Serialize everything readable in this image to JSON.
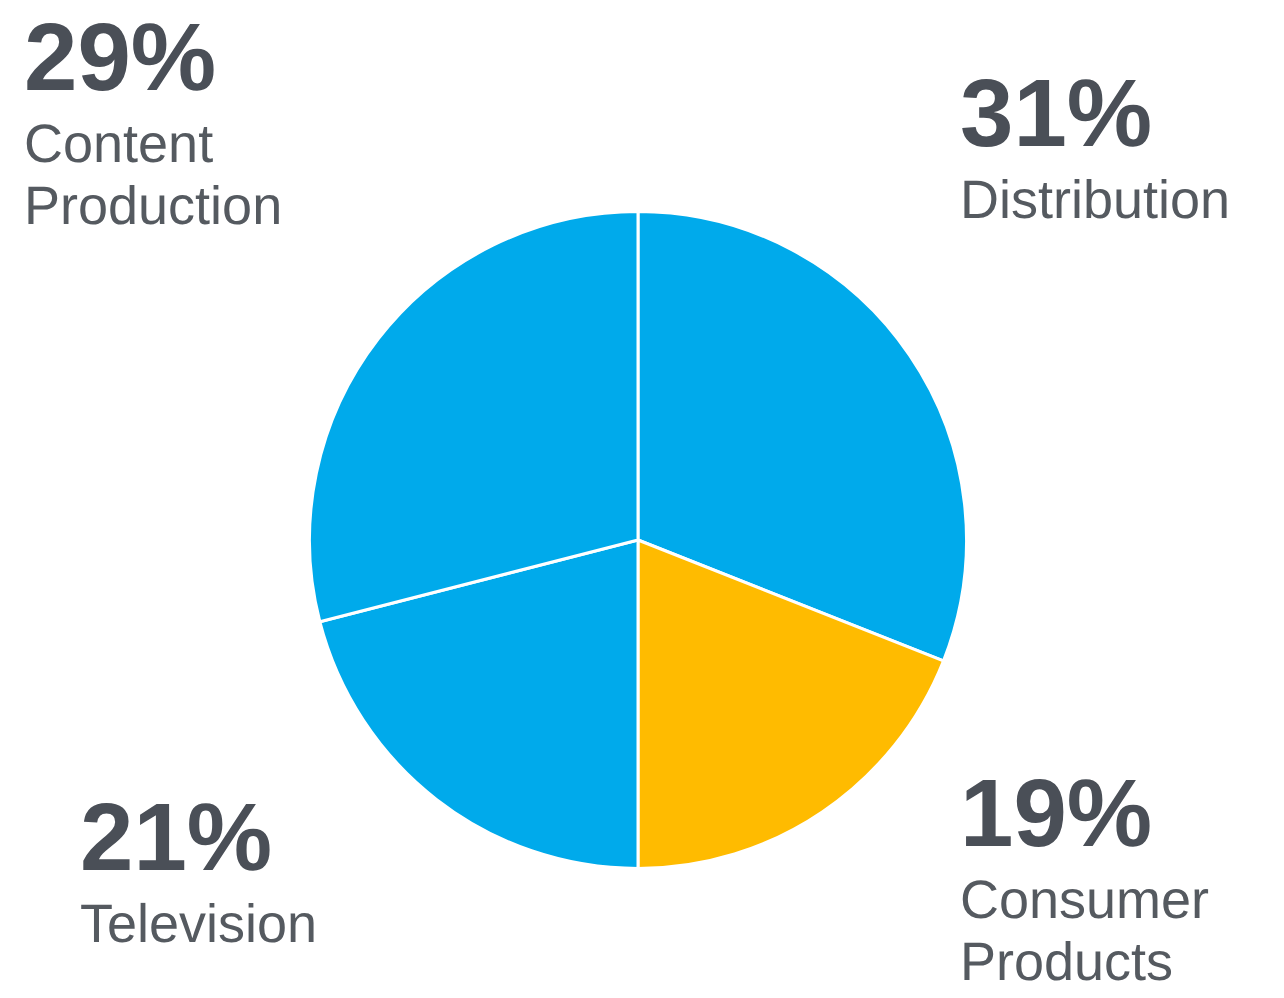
{
  "chart_data": {
    "type": "pie",
    "categories": [
      "Distribution",
      "Consumer Products",
      "Television",
      "Content Production"
    ],
    "values": [
      31,
      19,
      21,
      29
    ],
    "colors": [
      "#00aaeb",
      "#ffbb00",
      "#00aaeb",
      "#00aaeb"
    ],
    "value_labels": [
      "31%",
      "19%",
      "21%",
      "29%"
    ]
  }
}
